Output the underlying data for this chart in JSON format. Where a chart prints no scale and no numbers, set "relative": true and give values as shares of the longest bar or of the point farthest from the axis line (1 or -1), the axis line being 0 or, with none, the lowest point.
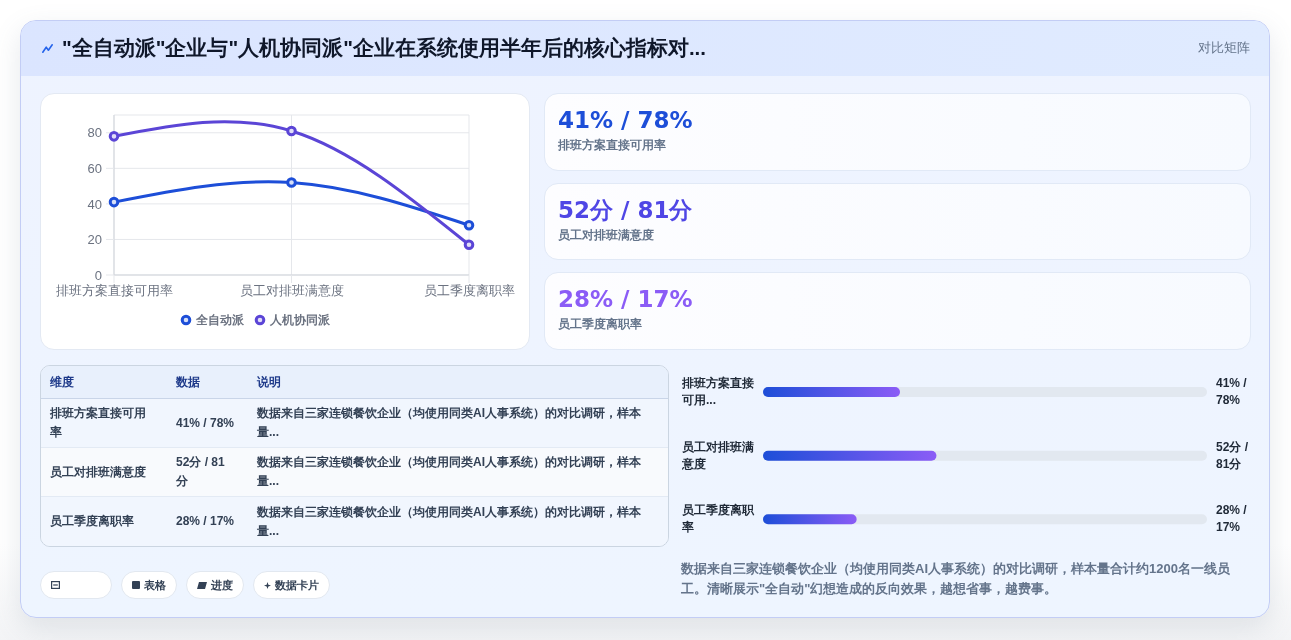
{
  "chart_data": [
    {
      "type": "other",
      "title": "\"全自动派\"企业与\"人机协同派\"企业在系统使用半年后的核心指标对...",
      "annotations": [
        "对比矩阵"
      ]
    },
    {
      "type": "line",
      "categories": [
        "排班方案直接可用率",
        "员工对排班满意度",
        "员工季度离职率"
      ],
      "series": [
        {
          "name": "全自动派",
          "color": "#1d4ed8",
          "values": [
            41,
            52,
            28
          ]
        },
        {
          "name": "人机协同派",
          "color": "#5b45d6",
          "values": [
            78,
            81,
            17
          ]
        }
      ],
      "ylim": [
        0,
        90
      ],
      "yticks": [
        0,
        20,
        40,
        60,
        80
      ],
      "grid": true,
      "legend": "bottom",
      "marker": "circle"
    },
    {
      "type": "other",
      "annotations": [
        "41% / 78%",
        "排班方案直接可用率",
        "52分 / 81分",
        "员工对排班满意度",
        "28% / 17%",
        "员工季度离职率"
      ]
    },
    {
      "type": "other",
      "annotations": [
        "维度",
        "数据",
        "说明",
        "排班方案直接可用率",
        "41% / 78%",
        "数据来自三家连锁餐饮企业（均使用同类AI人事系统）的对比调研，样本量...",
        "员工对排班满意度",
        "52分 / 81分",
        "数据来自三家连锁餐饮企业（均使用同类AI人事系统）的对比调研，样本量...",
        "员工季度离职率",
        "28% / 17%",
        "数据来自三家连锁餐饮企业（均使用同类AI人事系统）的对比调研，样本量..."
      ]
    },
    {
      "type": "bar",
      "orientation": "horizontal",
      "relative": true,
      "categories": [
        "排班方案直接可用...",
        "员工对排班满意度",
        "员工季度离职率"
      ],
      "values": [
        0.79,
        1,
        0.54
      ],
      "color": "#1d4ed8",
      "annotations": [
        "41% / 78%",
        "52分 / 81分",
        "28% / 17%"
      ]
    },
    {
      "type": "other",
      "annotations": [
        "表格",
        "进度",
        "数据卡片"
      ]
    },
    {
      "type": "other",
      "annotations": [
        "数据来自三家连锁餐饮企业（均使用同类AI人事系统）的对比调研，样本量合计约1200名一线员工。清晰展示\"全自动\"幻想造成的反向效果，越想省事，越费事。"
      ]
    }
  ]
}
